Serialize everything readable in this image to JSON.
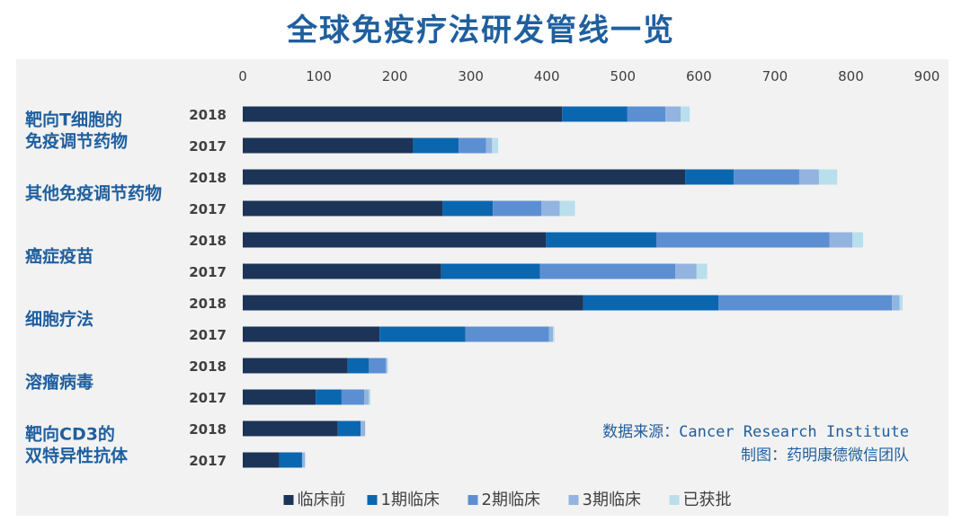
{
  "title": "全球免疫疗法研发管线一览",
  "source_line1": "数据来源：Cancer Research Institute",
  "source_line2": "制图：药明康德微信团队",
  "colors": {
    "background": "#f2f2f2",
    "title": "#1f5f9e",
    "text": "#404040",
    "series": [
      "#1b3458",
      "#0b66b0",
      "#5b8fd2",
      "#93b4e0",
      "#b9dfec"
    ]
  },
  "chart_data": {
    "type": "bar",
    "orientation": "horizontal",
    "stacked": true,
    "xlim": [
      0,
      900
    ],
    "x_ticks": [
      0,
      100,
      200,
      300,
      400,
      500,
      600,
      700,
      800,
      900
    ],
    "grid": false,
    "legend_position": "bottom",
    "groups": [
      {
        "label": [
          "靶向T细胞的",
          "免疫调节药物"
        ],
        "years": [
          "2018",
          "2017"
        ]
      },
      {
        "label": [
          "其他免疫调节药物"
        ],
        "years": [
          "2018",
          "2017"
        ]
      },
      {
        "label": [
          "癌症疫苗"
        ],
        "years": [
          "2018",
          "2017"
        ]
      },
      {
        "label": [
          "细胞疗法"
        ],
        "years": [
          "2018",
          "2017"
        ]
      },
      {
        "label": [
          "溶瘤病毒"
        ],
        "years": [
          "2018",
          "2017"
        ]
      },
      {
        "label": [
          "靶向CD3的",
          "双特异性抗体"
        ],
        "years": [
          "2018",
          "2017"
        ]
      }
    ],
    "series": [
      {
        "name": "临床前",
        "values": [
          420,
          224,
          582,
          263,
          399,
          261,
          448,
          180,
          138,
          96,
          125,
          48
        ]
      },
      {
        "name": "1期临床",
        "values": [
          86,
          60,
          64,
          66,
          145,
          130,
          178,
          113,
          28,
          34,
          30,
          30
        ]
      },
      {
        "name": "2期临床",
        "values": [
          50,
          36,
          86,
          64,
          228,
          178,
          228,
          110,
          22,
          30,
          0,
          0
        ]
      },
      {
        "name": "3期临床",
        "values": [
          20,
          8,
          26,
          24,
          30,
          28,
          10,
          5,
          2,
          6,
          6,
          4
        ]
      },
      {
        "name": "已获批",
        "values": [
          12,
          8,
          24,
          20,
          14,
          14,
          4,
          2,
          1,
          2,
          0,
          0
        ]
      }
    ]
  }
}
